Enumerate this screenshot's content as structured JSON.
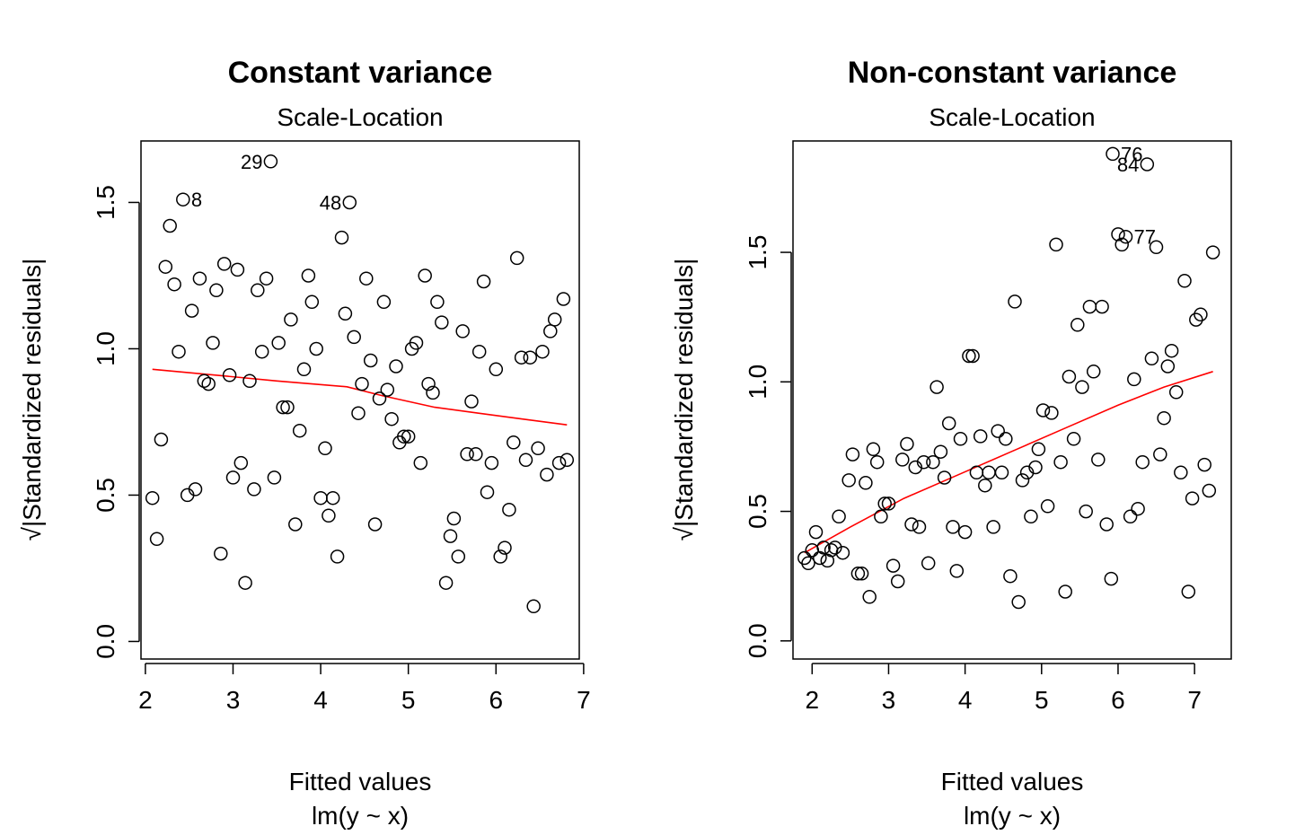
{
  "chart_data": [
    {
      "type": "scatter",
      "title": "Constant variance",
      "subtitle": "Scale-Location",
      "xlabel": "Fitted values",
      "xlabel2": "lm(y ~ x)",
      "ylabel": "√|Standardized residuals|",
      "xlim": [
        1.95,
        6.95
      ],
      "ylim": [
        -0.06,
        1.71
      ],
      "xticks": [
        2,
        3,
        4,
        5,
        6,
        7
      ],
      "yticks": [
        0.0,
        0.5,
        1.0,
        1.5
      ],
      "ytick_labels": [
        "0.0",
        "0.5",
        "1.0",
        "1.5"
      ],
      "grid": false,
      "points": [
        [
          2.08,
          0.49
        ],
        [
          2.13,
          0.35
        ],
        [
          2.18,
          0.69
        ],
        [
          2.23,
          1.28
        ],
        [
          2.28,
          1.42
        ],
        [
          2.33,
          1.22
        ],
        [
          2.38,
          0.99
        ],
        [
          2.43,
          1.51
        ],
        [
          2.48,
          0.5
        ],
        [
          2.53,
          1.13
        ],
        [
          2.57,
          0.52
        ],
        [
          2.62,
          1.24
        ],
        [
          2.67,
          0.89
        ],
        [
          2.72,
          0.88
        ],
        [
          2.77,
          1.02
        ],
        [
          2.81,
          1.2
        ],
        [
          2.86,
          0.3
        ],
        [
          2.9,
          1.29
        ],
        [
          2.96,
          0.91
        ],
        [
          3.0,
          0.56
        ],
        [
          3.05,
          1.27
        ],
        [
          3.09,
          0.61
        ],
        [
          3.14,
          0.2
        ],
        [
          3.19,
          0.89
        ],
        [
          3.24,
          0.52
        ],
        [
          3.28,
          1.2
        ],
        [
          3.33,
          0.99
        ],
        [
          3.38,
          1.24
        ],
        [
          3.43,
          1.64
        ],
        [
          3.47,
          0.56
        ],
        [
          3.52,
          1.02
        ],
        [
          3.57,
          0.8
        ],
        [
          3.62,
          0.8
        ],
        [
          3.66,
          1.1
        ],
        [
          3.71,
          0.4
        ],
        [
          3.76,
          0.72
        ],
        [
          3.81,
          0.93
        ],
        [
          3.86,
          1.25
        ],
        [
          3.9,
          1.16
        ],
        [
          3.95,
          1.0
        ],
        [
          4.0,
          0.49
        ],
        [
          4.05,
          0.66
        ],
        [
          4.09,
          0.43
        ],
        [
          4.14,
          0.49
        ],
        [
          4.19,
          0.29
        ],
        [
          4.24,
          1.38
        ],
        [
          4.28,
          1.12
        ],
        [
          4.33,
          1.5
        ],
        [
          4.38,
          1.04
        ],
        [
          4.43,
          0.78
        ],
        [
          4.47,
          0.88
        ],
        [
          4.52,
          1.24
        ],
        [
          4.57,
          0.96
        ],
        [
          4.62,
          0.4
        ],
        [
          4.67,
          0.83
        ],
        [
          4.72,
          1.16
        ],
        [
          4.76,
          0.86
        ],
        [
          4.81,
          0.76
        ],
        [
          4.86,
          0.94
        ],
        [
          4.9,
          0.68
        ],
        [
          4.95,
          0.7
        ],
        [
          5.0,
          0.7
        ],
        [
          5.04,
          1.0
        ],
        [
          5.09,
          1.02
        ],
        [
          5.14,
          0.61
        ],
        [
          5.19,
          1.25
        ],
        [
          5.23,
          0.88
        ],
        [
          5.28,
          0.85
        ],
        [
          5.33,
          1.16
        ],
        [
          5.38,
          1.09
        ],
        [
          5.43,
          0.2
        ],
        [
          5.48,
          0.36
        ],
        [
          5.52,
          0.42
        ],
        [
          5.57,
          0.29
        ],
        [
          5.62,
          1.06
        ],
        [
          5.67,
          0.64
        ],
        [
          5.72,
          0.82
        ],
        [
          5.77,
          0.64
        ],
        [
          5.81,
          0.99
        ],
        [
          5.86,
          1.23
        ],
        [
          5.9,
          0.51
        ],
        [
          5.95,
          0.61
        ],
        [
          6.0,
          0.93
        ],
        [
          6.05,
          0.29
        ],
        [
          6.1,
          0.32
        ],
        [
          6.15,
          0.45
        ],
        [
          6.2,
          0.68
        ],
        [
          6.24,
          1.31
        ],
        [
          6.29,
          0.97
        ],
        [
          6.34,
          0.62
        ],
        [
          6.39,
          0.97
        ],
        [
          6.43,
          0.12
        ],
        [
          6.48,
          0.66
        ],
        [
          6.53,
          0.99
        ],
        [
          6.58,
          0.57
        ],
        [
          6.62,
          1.06
        ],
        [
          6.67,
          1.1
        ],
        [
          6.72,
          0.61
        ],
        [
          6.77,
          1.17
        ],
        [
          6.81,
          0.62
        ]
      ],
      "labeled_points": [
        {
          "label": "29",
          "x": 3.43,
          "y": 1.64,
          "side": "left"
        },
        {
          "label": "8",
          "x": 2.43,
          "y": 1.51,
          "side": "right"
        },
        {
          "label": "48",
          "x": 4.33,
          "y": 1.5,
          "side": "left"
        }
      ],
      "smooth_line": [
        [
          2.08,
          0.93
        ],
        [
          2.8,
          0.91
        ],
        [
          3.5,
          0.89
        ],
        [
          3.9,
          0.88
        ],
        [
          4.3,
          0.87
        ],
        [
          4.7,
          0.84
        ],
        [
          5.3,
          0.8
        ],
        [
          5.8,
          0.78
        ],
        [
          6.3,
          0.76
        ],
        [
          6.81,
          0.74
        ]
      ],
      "smooth_color": "#ff0000"
    },
    {
      "type": "scatter",
      "title": "Non-constant variance",
      "subtitle": "Scale-Location",
      "xlabel": "Fitted values",
      "xlabel2": "lm(y ~ x)",
      "ylabel": "√|Standardized residuals|",
      "xlim": [
        1.75,
        7.48
      ],
      "ylim": [
        -0.07,
        1.93
      ],
      "xticks": [
        2,
        3,
        4,
        5,
        6,
        7
      ],
      "yticks": [
        0.0,
        0.5,
        1.0,
        1.5
      ],
      "ytick_labels": [
        "0.0",
        "0.5",
        "1.0",
        "1.5"
      ],
      "grid": false,
      "points": [
        [
          1.9,
          0.32
        ],
        [
          1.95,
          0.3
        ],
        [
          2.0,
          0.35
        ],
        [
          2.05,
          0.42
        ],
        [
          2.1,
          0.32
        ],
        [
          2.15,
          0.36
        ],
        [
          2.2,
          0.31
        ],
        [
          2.25,
          0.35
        ],
        [
          2.3,
          0.36
        ],
        [
          2.35,
          0.48
        ],
        [
          2.4,
          0.34
        ],
        [
          2.48,
          0.62
        ],
        [
          2.53,
          0.72
        ],
        [
          2.6,
          0.26
        ],
        [
          2.65,
          0.26
        ],
        [
          2.7,
          0.61
        ],
        [
          2.75,
          0.17
        ],
        [
          2.8,
          0.74
        ],
        [
          2.85,
          0.69
        ],
        [
          2.9,
          0.48
        ],
        [
          2.95,
          0.53
        ],
        [
          3.0,
          0.53
        ],
        [
          3.06,
          0.29
        ],
        [
          3.12,
          0.23
        ],
        [
          3.18,
          0.7
        ],
        [
          3.24,
          0.76
        ],
        [
          3.3,
          0.45
        ],
        [
          3.35,
          0.67
        ],
        [
          3.4,
          0.44
        ],
        [
          3.46,
          0.69
        ],
        [
          3.52,
          0.3
        ],
        [
          3.58,
          0.69
        ],
        [
          3.63,
          0.98
        ],
        [
          3.68,
          0.73
        ],
        [
          3.73,
          0.63
        ],
        [
          3.79,
          0.84
        ],
        [
          3.84,
          0.44
        ],
        [
          3.89,
          0.27
        ],
        [
          3.94,
          0.78
        ],
        [
          4.0,
          0.42
        ],
        [
          4.05,
          1.1
        ],
        [
          4.1,
          1.1
        ],
        [
          4.15,
          0.65
        ],
        [
          4.2,
          0.79
        ],
        [
          4.26,
          0.6
        ],
        [
          4.31,
          0.65
        ],
        [
          4.37,
          0.44
        ],
        [
          4.43,
          0.81
        ],
        [
          4.48,
          0.65
        ],
        [
          4.53,
          0.78
        ],
        [
          4.59,
          0.25
        ],
        [
          4.65,
          1.31
        ],
        [
          4.7,
          0.15
        ],
        [
          4.75,
          0.62
        ],
        [
          4.81,
          0.65
        ],
        [
          4.86,
          0.48
        ],
        [
          4.92,
          0.67
        ],
        [
          4.96,
          0.74
        ],
        [
          5.02,
          0.89
        ],
        [
          5.08,
          0.52
        ],
        [
          5.13,
          0.88
        ],
        [
          5.19,
          1.53
        ],
        [
          5.25,
          0.69
        ],
        [
          5.31,
          0.19
        ],
        [
          5.36,
          1.02
        ],
        [
          5.42,
          0.78
        ],
        [
          5.47,
          1.22
        ],
        [
          5.53,
          0.98
        ],
        [
          5.58,
          0.5
        ],
        [
          5.63,
          1.29
        ],
        [
          5.68,
          1.04
        ],
        [
          5.74,
          0.7
        ],
        [
          5.79,
          1.29
        ],
        [
          5.85,
          0.45
        ],
        [
          5.91,
          0.24
        ],
        [
          5.93,
          1.88
        ],
        [
          6.0,
          1.57
        ],
        [
          6.05,
          1.53
        ],
        [
          6.1,
          1.56
        ],
        [
          6.16,
          0.48
        ],
        [
          6.21,
          1.01
        ],
        [
          6.26,
          0.51
        ],
        [
          6.32,
          0.69
        ],
        [
          6.38,
          1.84
        ],
        [
          6.44,
          1.09
        ],
        [
          6.5,
          1.52
        ],
        [
          6.55,
          0.72
        ],
        [
          6.6,
          0.86
        ],
        [
          6.65,
          1.06
        ],
        [
          6.7,
          1.12
        ],
        [
          6.76,
          0.96
        ],
        [
          6.82,
          0.65
        ],
        [
          6.87,
          1.39
        ],
        [
          6.92,
          0.19
        ],
        [
          6.97,
          0.55
        ],
        [
          7.02,
          1.24
        ],
        [
          7.08,
          1.26
        ],
        [
          7.13,
          0.68
        ],
        [
          7.19,
          0.58
        ],
        [
          7.24,
          1.5
        ]
      ],
      "labeled_points": [
        {
          "label": "76",
          "x": 5.93,
          "y": 1.88,
          "side": "right"
        },
        {
          "label": "84",
          "x": 6.38,
          "y": 1.84,
          "side": "left"
        },
        {
          "label": "77",
          "x": 6.1,
          "y": 1.56,
          "side": "right"
        }
      ],
      "smooth_line": [
        [
          1.9,
          0.34
        ],
        [
          2.5,
          0.44
        ],
        [
          3.2,
          0.55
        ],
        [
          3.9,
          0.64
        ],
        [
          4.6,
          0.73
        ],
        [
          5.3,
          0.82
        ],
        [
          6.0,
          0.91
        ],
        [
          6.6,
          0.98
        ],
        [
          7.24,
          1.04
        ]
      ],
      "smooth_color": "#ff0000"
    }
  ]
}
